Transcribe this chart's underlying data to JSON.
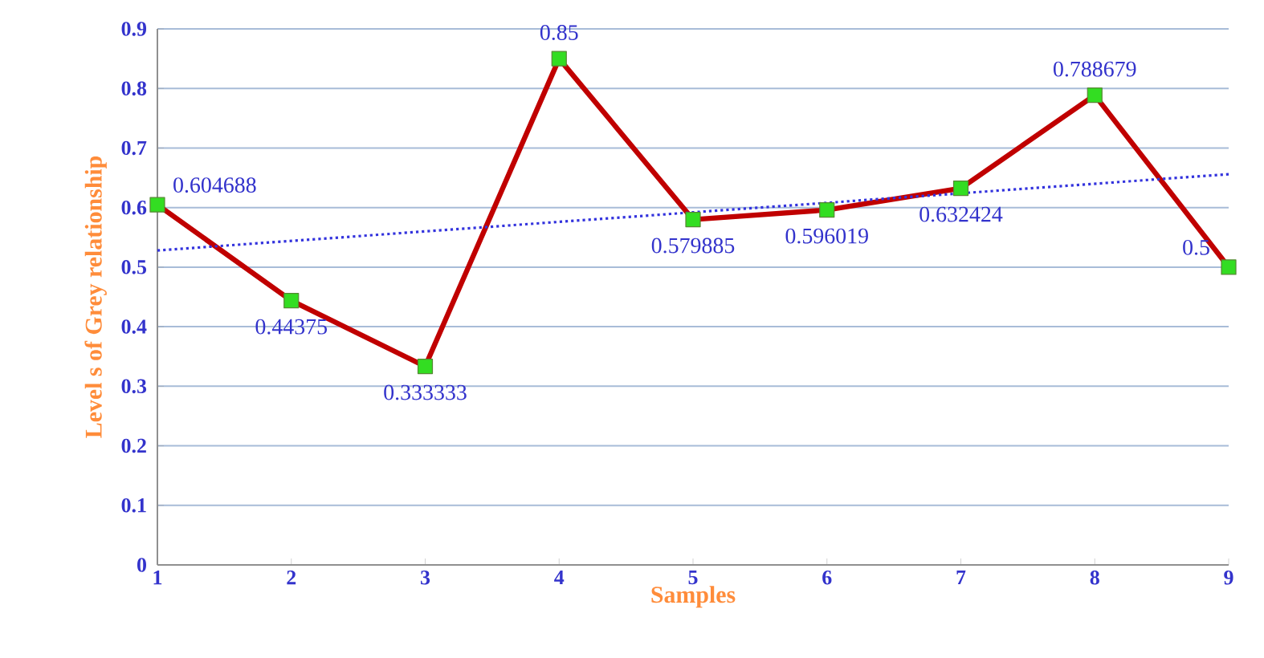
{
  "chart_data": {
    "type": "line",
    "xlabel": "Samples",
    "ylabel": "Level s of Grey relationship",
    "x": [
      1,
      2,
      3,
      4,
      5,
      6,
      7,
      8,
      9
    ],
    "series": [
      {
        "color": "#c00000",
        "marker": "square",
        "data_labels": true,
        "values": [
          0.604688,
          0.44375,
          0.333333,
          0.85,
          0.579885,
          0.596019,
          0.632424,
          0.788679,
          0.5
        ]
      },
      {
        "color": "#3333dd",
        "marker": "none",
        "line_style": "dotted",
        "x": [
          1,
          9
        ],
        "values": [
          0.528,
          0.656
        ]
      }
    ],
    "xlim": [
      1,
      9
    ],
    "xticks": [
      1,
      2,
      3,
      4,
      5,
      6,
      7,
      8,
      9
    ],
    "ylim": [
      0,
      0.9
    ],
    "yticks": [
      0,
      0.1,
      0.2,
      0.3,
      0.4,
      0.5,
      0.6,
      0.7,
      0.8,
      0.9
    ],
    "grid": "y"
  }
}
